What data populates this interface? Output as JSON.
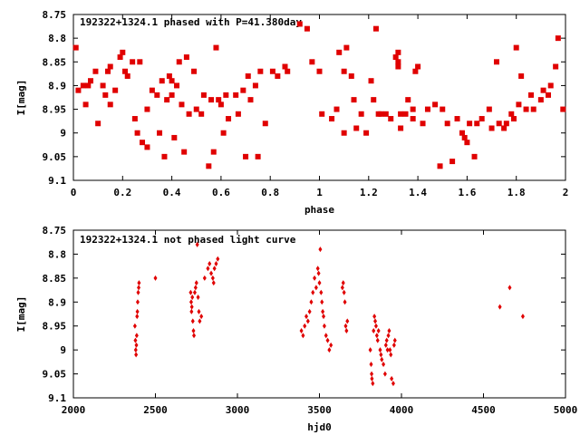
{
  "chart_data": [
    {
      "type": "scatter",
      "title": "192322+1324.1 phased with P=41.380day",
      "xlabel": "phase",
      "ylabel": "I[mag]",
      "xlim": [
        0,
        2
      ],
      "ylim": [
        8.75,
        9.1
      ],
      "y_inverted": true,
      "grid": false,
      "x_ticks": [
        0,
        0.2,
        0.4,
        0.6,
        0.8,
        1,
        1.2,
        1.4,
        1.6,
        1.8,
        2
      ],
      "x_tick_labels": [
        "0",
        "0.2",
        "0.4",
        "0.6",
        "0.8",
        "1",
        "1.2",
        "1.4",
        "1.6",
        "1.8",
        "2"
      ],
      "y_ticks": [
        8.75,
        8.8,
        8.85,
        8.9,
        8.95,
        9,
        9.05,
        9.1
      ],
      "y_tick_labels": [
        "8.75",
        "8.8",
        "8.85",
        "8.9",
        "8.95",
        "9",
        "9.05",
        "9.1"
      ],
      "marker_color": "#e00000",
      "points": [
        [
          0.01,
          8.82
        ],
        [
          0.02,
          8.91
        ],
        [
          0.04,
          8.9
        ],
        [
          0.05,
          8.94
        ],
        [
          0.06,
          8.9
        ],
        [
          0.07,
          8.89
        ],
        [
          0.09,
          8.87
        ],
        [
          0.1,
          8.98
        ],
        [
          0.12,
          8.9
        ],
        [
          0.13,
          8.92
        ],
        [
          0.14,
          8.87
        ],
        [
          0.15,
          8.94
        ],
        [
          0.15,
          8.86
        ],
        [
          0.17,
          8.91
        ],
        [
          0.19,
          8.84
        ],
        [
          0.2,
          8.83
        ],
        [
          0.21,
          8.87
        ],
        [
          0.22,
          8.88
        ],
        [
          0.24,
          8.85
        ],
        [
          0.25,
          8.97
        ],
        [
          0.26,
          9.0
        ],
        [
          0.27,
          8.85
        ],
        [
          0.28,
          9.02
        ],
        [
          0.3,
          8.95
        ],
        [
          0.3,
          9.03
        ],
        [
          0.32,
          8.91
        ],
        [
          0.34,
          8.92
        ],
        [
          0.35,
          9.0
        ],
        [
          0.36,
          8.89
        ],
        [
          0.37,
          9.05
        ],
        [
          0.38,
          8.93
        ],
        [
          0.39,
          8.88
        ],
        [
          0.4,
          8.89
        ],
        [
          0.4,
          8.92
        ],
        [
          0.41,
          9.01
        ],
        [
          0.42,
          8.9
        ],
        [
          0.43,
          8.85
        ],
        [
          0.44,
          8.94
        ],
        [
          0.45,
          9.04
        ],
        [
          0.46,
          8.84
        ],
        [
          0.47,
          8.96
        ],
        [
          0.49,
          8.87
        ],
        [
          0.5,
          8.95
        ],
        [
          0.52,
          8.96
        ],
        [
          0.53,
          8.92
        ],
        [
          0.55,
          9.07
        ],
        [
          0.56,
          8.93
        ],
        [
          0.57,
          9.04
        ],
        [
          0.58,
          8.82
        ],
        [
          0.59,
          8.93
        ],
        [
          0.6,
          8.94
        ],
        [
          0.61,
          9.0
        ],
        [
          0.62,
          8.92
        ],
        [
          0.63,
          8.97
        ],
        [
          0.66,
          8.92
        ],
        [
          0.67,
          8.96
        ],
        [
          0.69,
          8.91
        ],
        [
          0.7,
          9.05
        ],
        [
          0.71,
          8.88
        ],
        [
          0.72,
          8.93
        ],
        [
          0.74,
          8.9
        ],
        [
          0.75,
          9.05
        ],
        [
          0.76,
          8.87
        ],
        [
          0.78,
          8.98
        ],
        [
          0.81,
          8.87
        ],
        [
          0.83,
          8.88
        ],
        [
          0.86,
          8.86
        ],
        [
          0.87,
          8.87
        ],
        [
          0.92,
          8.77
        ],
        [
          0.95,
          8.78
        ],
        [
          0.97,
          8.85
        ],
        [
          1.0,
          8.87
        ],
        [
          1.01,
          8.96
        ],
        [
          1.05,
          8.97
        ],
        [
          1.07,
          8.95
        ],
        [
          1.08,
          8.83
        ],
        [
          1.1,
          8.87
        ],
        [
          1.1,
          9.0
        ],
        [
          1.11,
          8.82
        ],
        [
          1.13,
          8.88
        ],
        [
          1.14,
          8.93
        ],
        [
          1.15,
          8.99
        ],
        [
          1.17,
          8.96
        ],
        [
          1.19,
          9.0
        ],
        [
          1.21,
          8.89
        ],
        [
          1.22,
          8.93
        ],
        [
          1.23,
          8.78
        ],
        [
          1.24,
          8.96
        ],
        [
          1.25,
          8.96
        ],
        [
          1.27,
          8.96
        ],
        [
          1.29,
          8.97
        ],
        [
          1.31,
          8.84
        ],
        [
          1.32,
          8.83
        ],
        [
          1.32,
          8.85
        ],
        [
          1.32,
          8.86
        ],
        [
          1.33,
          8.96
        ],
        [
          1.33,
          8.99
        ],
        [
          1.35,
          8.96
        ],
        [
          1.36,
          8.93
        ],
        [
          1.38,
          8.97
        ],
        [
          1.38,
          8.95
        ],
        [
          1.39,
          8.87
        ],
        [
          1.4,
          8.86
        ],
        [
          1.42,
          8.98
        ],
        [
          1.44,
          8.95
        ],
        [
          1.47,
          8.94
        ],
        [
          1.49,
          9.07
        ],
        [
          1.5,
          8.95
        ],
        [
          1.52,
          8.98
        ],
        [
          1.54,
          9.06
        ],
        [
          1.56,
          8.97
        ],
        [
          1.58,
          9.0
        ],
        [
          1.59,
          9.01
        ],
        [
          1.6,
          9.02
        ],
        [
          1.61,
          8.98
        ],
        [
          1.63,
          9.05
        ],
        [
          1.64,
          8.98
        ],
        [
          1.66,
          8.97
        ],
        [
          1.69,
          8.95
        ],
        [
          1.7,
          8.99
        ],
        [
          1.72,
          8.85
        ],
        [
          1.73,
          8.98
        ],
        [
          1.75,
          8.99
        ],
        [
          1.76,
          8.98
        ],
        [
          1.78,
          8.96
        ],
        [
          1.79,
          8.97
        ],
        [
          1.8,
          8.82
        ],
        [
          1.81,
          8.94
        ],
        [
          1.82,
          8.88
        ],
        [
          1.84,
          8.95
        ],
        [
          1.86,
          8.92
        ],
        [
          1.87,
          8.95
        ],
        [
          1.9,
          8.93
        ],
        [
          1.91,
          8.91
        ],
        [
          1.93,
          8.92
        ],
        [
          1.94,
          8.9
        ],
        [
          1.96,
          8.86
        ],
        [
          1.97,
          8.8
        ],
        [
          1.99,
          8.95
        ]
      ]
    },
    {
      "type": "scatter",
      "title": "192322+1324.1 not phased light curve",
      "xlabel": "hjd0",
      "ylabel": "I[mag]",
      "xlim": [
        2000,
        5000
      ],
      "ylim": [
        8.75,
        9.1
      ],
      "y_inverted": true,
      "grid": false,
      "x_ticks": [
        2000,
        2500,
        3000,
        3500,
        4000,
        4500,
        5000
      ],
      "x_tick_labels": [
        "2000",
        "2500",
        "3000",
        "3500",
        "4000",
        "4500",
        "5000"
      ],
      "y_ticks": [
        8.75,
        8.8,
        8.85,
        8.9,
        8.95,
        9,
        9.05,
        9.1
      ],
      "y_tick_labels": [
        "8.75",
        "8.8",
        "8.85",
        "8.9",
        "8.95",
        "9",
        "9.05",
        "9.1"
      ],
      "marker_color": "#e00000",
      "points": [
        [
          2375,
          8.95
        ],
        [
          2378,
          8.98
        ],
        [
          2380,
          9.0
        ],
        [
          2382,
          9.01
        ],
        [
          2384,
          8.99
        ],
        [
          2386,
          8.97
        ],
        [
          2388,
          8.93
        ],
        [
          2390,
          8.92
        ],
        [
          2392,
          8.9
        ],
        [
          2395,
          8.88
        ],
        [
          2398,
          8.87
        ],
        [
          2400,
          8.86
        ],
        [
          2500,
          8.85
        ],
        [
          2715,
          8.88
        ],
        [
          2718,
          8.9
        ],
        [
          2720,
          8.92
        ],
        [
          2722,
          8.91
        ],
        [
          2725,
          8.89
        ],
        [
          2728,
          8.94
        ],
        [
          2732,
          8.96
        ],
        [
          2735,
          8.97
        ],
        [
          2740,
          8.88
        ],
        [
          2745,
          8.87
        ],
        [
          2750,
          8.86
        ],
        [
          2755,
          8.78
        ],
        [
          2760,
          8.89
        ],
        [
          2765,
          8.92
        ],
        [
          2770,
          8.94
        ],
        [
          2780,
          8.93
        ],
        [
          2800,
          8.85
        ],
        [
          2820,
          8.83
        ],
        [
          2830,
          8.82
        ],
        [
          2840,
          8.84
        ],
        [
          2850,
          8.85
        ],
        [
          2855,
          8.86
        ],
        [
          2860,
          8.83
        ],
        [
          2870,
          8.82
        ],
        [
          2880,
          8.81
        ],
        [
          3390,
          8.96
        ],
        [
          3400,
          8.97
        ],
        [
          3410,
          8.95
        ],
        [
          3420,
          8.93
        ],
        [
          3430,
          8.94
        ],
        [
          3440,
          8.92
        ],
        [
          3450,
          8.9
        ],
        [
          3460,
          8.88
        ],
        [
          3470,
          8.85
        ],
        [
          3480,
          8.87
        ],
        [
          3490,
          8.83
        ],
        [
          3495,
          8.84
        ],
        [
          3500,
          8.86
        ],
        [
          3505,
          8.79
        ],
        [
          3510,
          8.88
        ],
        [
          3515,
          8.9
        ],
        [
          3520,
          8.92
        ],
        [
          3525,
          8.93
        ],
        [
          3530,
          8.95
        ],
        [
          3540,
          8.97
        ],
        [
          3550,
          8.98
        ],
        [
          3560,
          9.0
        ],
        [
          3570,
          8.99
        ],
        [
          3640,
          8.87
        ],
        [
          3645,
          8.86
        ],
        [
          3650,
          8.88
        ],
        [
          3655,
          8.9
        ],
        [
          3660,
          8.95
        ],
        [
          3665,
          8.96
        ],
        [
          3670,
          8.94
        ],
        [
          3810,
          9.0
        ],
        [
          3815,
          9.03
        ],
        [
          3818,
          9.05
        ],
        [
          3820,
          9.06
        ],
        [
          3825,
          9.07
        ],
        [
          3830,
          8.96
        ],
        [
          3835,
          8.93
        ],
        [
          3840,
          8.94
        ],
        [
          3845,
          8.95
        ],
        [
          3850,
          8.97
        ],
        [
          3855,
          8.98
        ],
        [
          3860,
          8.96
        ],
        [
          3870,
          9.0
        ],
        [
          3875,
          9.01
        ],
        [
          3880,
          9.02
        ],
        [
          3890,
          9.03
        ],
        [
          3900,
          9.05
        ],
        [
          3905,
          8.99
        ],
        [
          3910,
          8.98
        ],
        [
          3915,
          9.0
        ],
        [
          3920,
          8.97
        ],
        [
          3925,
          8.96
        ],
        [
          3930,
          9.0
        ],
        [
          3935,
          9.01
        ],
        [
          3940,
          9.06
        ],
        [
          3950,
          9.07
        ],
        [
          3955,
          8.99
        ],
        [
          3960,
          8.98
        ],
        [
          4600,
          8.91
        ],
        [
          4660,
          8.87
        ],
        [
          4740,
          8.93
        ]
      ]
    }
  ]
}
